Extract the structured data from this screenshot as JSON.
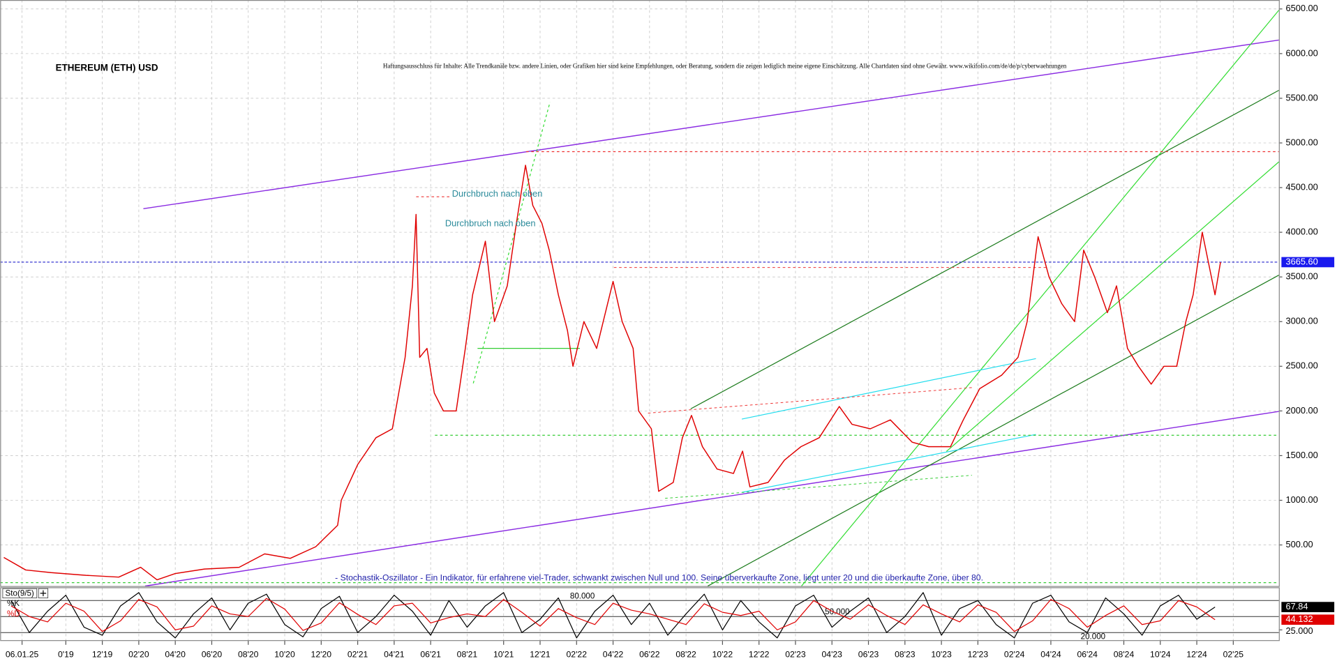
{
  "chart_data": [
    {
      "type": "line",
      "title": "ETHEREUM (ETH) USD",
      "subtitle": "Haftungsausschluss für Inhalte: Alle Trendkanäle bzw. andere Linien, oder Grafiken hier sind keine Empfehlungen, oder Beratung, sondern die zeigen lediglich meine eigene Einschätzung. Alle Chartdaten sind ohne Gewähr. www.wikifolio.com/de/de/p/cyberwaehrungen",
      "annotations": [
        "Durchbruch nach oben",
        "Durchbruch nach oben"
      ],
      "x": [
        5.6,
        6.8,
        8.2,
        10.1,
        11.9,
        13.1,
        14.0,
        15.0,
        16.6,
        18.5,
        19.9,
        21.3,
        22.7,
        23.9,
        24.1,
        25.0,
        26.0,
        26.9,
        27.6,
        28.0,
        28.2,
        28.4,
        28.8,
        29.2,
        29.7,
        30.4,
        30.9,
        31.3,
        32.0,
        32.5,
        33.2,
        33.7,
        34.2,
        34.6,
        35.1,
        35.5,
        36.0,
        36.5,
        36.8,
        37.4,
        38.1,
        39.0,
        39.5,
        40.1,
        40.4,
        41.1,
        41.5,
        42.3,
        42.8,
        43.3,
        43.9,
        44.7,
        45.6,
        46.1,
        46.5,
        47.5,
        48.4,
        49.3,
        50.3,
        51.4,
        52.1,
        53.1,
        54.2,
        55.4,
        56.3,
        57.5,
        58.2,
        59.1,
        60.3,
        61.2,
        61.7,
        62.3,
        62.9,
        63.6,
        64.3,
        64.8,
        65.4,
        66.1,
        66.6,
        67.2,
        67.8,
        68.5,
        69.2,
        69.9,
        70.4,
        70.8,
        71.3,
        71.7,
        72.0,
        72.3
      ],
      "values": [
        360,
        220,
        190,
        160,
        140,
        250,
        110,
        180,
        230,
        250,
        400,
        350,
        480,
        720,
        1000,
        1400,
        1700,
        1800,
        2600,
        3400,
        4200,
        2600,
        2700,
        2200,
        2000,
        2000,
        2700,
        3300,
        3900,
        3000,
        3400,
        4100,
        4750,
        4300,
        4100,
        3800,
        3300,
        2900,
        2500,
        3000,
        2700,
        3450,
        3000,
        2700,
        2000,
        1800,
        1100,
        1200,
        1700,
        1950,
        1600,
        1350,
        1300,
        1550,
        1150,
        1200,
        1450,
        1600,
        1700,
        2050,
        1850,
        1800,
        1900,
        1650,
        1600,
        1600,
        1900,
        2250,
        2400,
        2600,
        3000,
        3950,
        3500,
        3200,
        3000,
        3800,
        3500,
        3100,
        3400,
        2700,
        2500,
        2300,
        2500,
        2500,
        3000,
        3300,
        4000,
        3600,
        3300,
        3665.6
      ],
      "color": "#e00000",
      "last_value": {
        "value": 3665.6,
        "label": "3665.60"
      },
      "xlim": [
        5.4,
        75.5
      ],
      "ylim": [
        40,
        6600
      ],
      "xticks": [
        {
          "value": 6.6,
          "label": "06.01.25"
        },
        {
          "value": 9,
          "label": "0'19"
        },
        {
          "value": 11,
          "label": "12'19"
        },
        {
          "value": 13,
          "label": "02'20"
        },
        {
          "value": 15,
          "label": "04'20"
        },
        {
          "value": 17,
          "label": "06'20"
        },
        {
          "value": 19,
          "label": "08'20"
        },
        {
          "value": 21,
          "label": "10'20"
        },
        {
          "value": 23,
          "label": "12'20"
        },
        {
          "value": 25,
          "label": "02'21"
        },
        {
          "value": 27,
          "label": "04'21"
        },
        {
          "value": 29,
          "label": "06'21"
        },
        {
          "value": 31,
          "label": "08'21"
        },
        {
          "value": 33,
          "label": "10'21"
        },
        {
          "value": 35,
          "label": "12'21"
        },
        {
          "value": 37,
          "label": "02'22"
        },
        {
          "value": 39,
          "label": "04'22"
        },
        {
          "value": 41,
          "label": "06'22"
        },
        {
          "value": 43,
          "label": "08'22"
        },
        {
          "value": 45,
          "label": "10'22"
        },
        {
          "value": 47,
          "label": "12'22"
        },
        {
          "value": 49,
          "label": "02'23"
        },
        {
          "value": 51,
          "label": "04'23"
        },
        {
          "value": 53,
          "label": "06'23"
        },
        {
          "value": 55,
          "label": "08'23"
        },
        {
          "value": 57,
          "label": "10'23"
        },
        {
          "value": 59,
          "label": "12'23"
        },
        {
          "value": 61,
          "label": "02'24"
        },
        {
          "value": 63,
          "label": "04'24"
        },
        {
          "value": 65,
          "label": "06'24"
        },
        {
          "value": 67,
          "label": "08'24"
        },
        {
          "value": 69,
          "label": "10'24"
        },
        {
          "value": 71,
          "label": "12'24"
        },
        {
          "value": 73,
          "label": "02'25"
        }
      ],
      "yticks": [
        {
          "value": 500,
          "label": "500.00"
        },
        {
          "value": 1000,
          "label": "1000.00"
        },
        {
          "value": 1500,
          "label": "1500.00"
        },
        {
          "value": 2000,
          "label": "2000.00"
        },
        {
          "value": 2500,
          "label": "2500.00"
        },
        {
          "value": 3000,
          "label": "3000.00"
        },
        {
          "value": 3500,
          "label": "3500.00"
        },
        {
          "value": 4000,
          "label": "4000.00"
        },
        {
          "value": 4500,
          "label": "4500.00"
        },
        {
          "value": 5000,
          "label": "5000.00"
        },
        {
          "value": 5500,
          "label": "5500.00"
        },
        {
          "value": 6000,
          "label": "6000.00"
        },
        {
          "value": 6500,
          "label": "6500.00"
        }
      ],
      "grid": true
    },
    {
      "type": "line",
      "title": "Sto(9/5)",
      "annotation": "- Stochastik-Oszillator - Ein Indikator, für erfahrene viel-Trader, schwankt zwischen Null und 100. Seine überverkaufte Zone, liegt unter 20 und die überkaufte Zone, über 80.",
      "x": [
        6,
        7,
        8,
        9,
        10,
        11,
        12,
        13,
        14,
        15,
        16,
        17,
        18,
        19,
        20,
        21,
        22,
        23,
        24,
        25,
        26,
        27,
        28,
        29,
        30,
        31,
        32,
        33,
        34,
        35,
        36,
        37,
        38,
        39,
        40,
        41,
        42,
        43,
        44,
        45,
        46,
        47,
        48,
        49,
        50,
        51,
        52,
        53,
        54,
        55,
        56,
        57,
        58,
        59,
        60,
        61,
        62,
        63,
        64,
        65,
        66,
        67,
        68,
        69,
        70,
        71,
        72
      ],
      "series": [
        {
          "name": "%K",
          "color": "#000000",
          "values": [
            80,
            20,
            60,
            90,
            30,
            15,
            70,
            95,
            40,
            10,
            55,
            85,
            25,
            75,
            92,
            35,
            12,
            65,
            88,
            20,
            50,
            90,
            60,
            15,
            80,
            30,
            70,
            95,
            20,
            45,
            85,
            10,
            60,
            90,
            35,
            75,
            15,
            55,
            92,
            25,
            80,
            40,
            10,
            70,
            90,
            30,
            60,
            85,
            20,
            50,
            95,
            15,
            65,
            80,
            35,
            10,
            75,
            90,
            40,
            20,
            85,
            55,
            15,
            70,
            90,
            45,
            67.84
          ]
        },
        {
          "name": "%D",
          "color": "#e00000",
          "values": [
            70,
            50,
            40,
            75,
            60,
            22,
            42,
            82,
            68,
            25,
            32,
            70,
            55,
            50,
            84,
            64,
            24,
            38,
            76,
            54,
            35,
            70,
            75,
            38,
            48,
            55,
            50,
            82,
            58,
            32,
            65,
            48,
            35,
            75,
            62,
            55,
            45,
            35,
            74,
            58,
            52,
            60,
            25,
            40,
            80,
            60,
            45,
            72,
            52,
            35,
            72,
            55,
            40,
            72,
            58,
            22,
            42,
            82,
            65,
            30,
            52,
            70,
            35,
            42,
            80,
            68,
            44.132
          ]
        }
      ],
      "xlim": [
        5.4,
        75.5
      ],
      "ylim": [
        5,
        104
      ],
      "levels": [
        {
          "value": 80,
          "label": "80.000"
        },
        {
          "value": 50,
          "label": "50.000"
        },
        {
          "value": 20,
          "label": "20.000"
        }
      ],
      "yticks": [
        {
          "value": 25,
          "label": "25.000"
        }
      ]
    }
  ]
}
